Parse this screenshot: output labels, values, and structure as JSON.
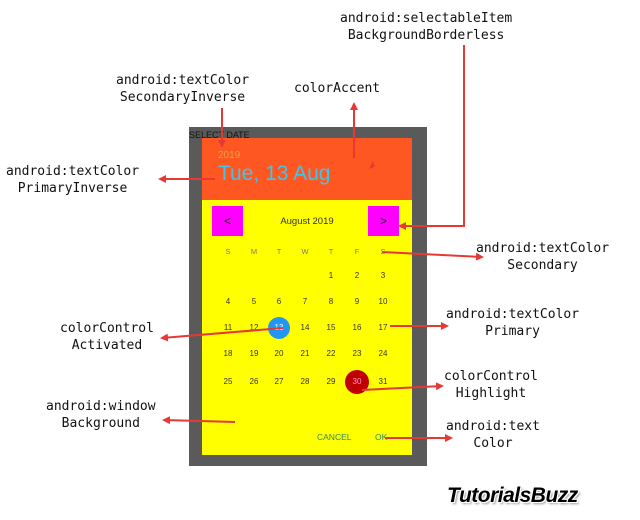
{
  "callouts": {
    "selectable_item": [
      "android:selectableItem",
      "BackgroundBorderless"
    ],
    "text_color_secondary_inverse": [
      "android:textColor",
      "SecondaryInverse"
    ],
    "color_accent": [
      "colorAccent"
    ],
    "text_color_primary_inverse": [
      "android:textColor",
      "PrimaryInverse"
    ],
    "text_color_secondary": [
      "android:textColor",
      "Secondary"
    ],
    "color_control_activated": [
      "colorControl",
      "Activated"
    ],
    "text_color_primary": [
      "android:textColor",
      "Primary"
    ],
    "color_control_highlight": [
      "colorControl",
      "Highlight"
    ],
    "window_background": [
      "android:window",
      "Background"
    ],
    "text_color": [
      "android:text",
      "Color"
    ]
  },
  "dialog": {
    "select_label": "SELECT DATE",
    "year": "2019",
    "date": "Tue, 13 Aug",
    "month": "August 2019",
    "prev": "<",
    "next": ">",
    "weekdays": [
      "S",
      "M",
      "T",
      "W",
      "T",
      "F",
      "S"
    ],
    "weeks": [
      [
        "",
        "",
        "",
        "",
        "1",
        "2",
        "3"
      ],
      [
        "4",
        "5",
        "6",
        "7",
        "8",
        "9",
        "10"
      ],
      [
        "11",
        "12",
        "13",
        "14",
        "15",
        "16",
        "17"
      ],
      [
        "18",
        "19",
        "20",
        "21",
        "22",
        "23",
        "24"
      ],
      [
        "25",
        "26",
        "27",
        "28",
        "29",
        "30",
        "31"
      ]
    ],
    "selected_day": "13",
    "highlighted_day": "30",
    "cancel": "CANCEL",
    "ok": "OK"
  },
  "colors": {
    "header": "#ff5722",
    "calendar_bg": "#ffff00",
    "nav_buttons": "#ff00ff",
    "selected": "#2196f3",
    "highlight": "#c00000",
    "arrows": "#e53935"
  },
  "logo": "TutorialsBuzz"
}
